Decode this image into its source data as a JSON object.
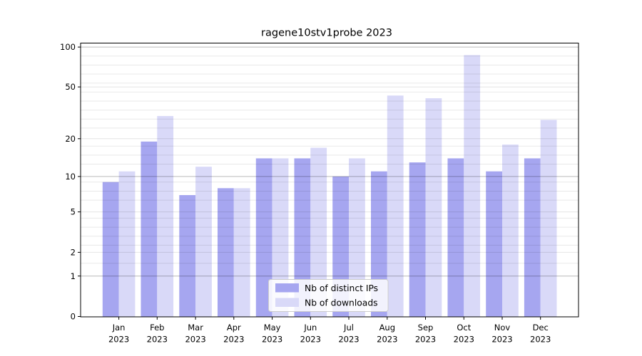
{
  "chart_data": {
    "type": "bar",
    "title": "ragene10stv1probe 2023",
    "categories": [
      "Jan 2023",
      "Feb 2023",
      "Mar 2023",
      "Apr 2023",
      "May 2023",
      "Jun 2023",
      "Jul 2023",
      "Aug 2023",
      "Sep 2023",
      "Oct 2023",
      "Nov 2023",
      "Dec 2023"
    ],
    "series": [
      {
        "name": "Nb of distinct IPs",
        "color": "#a6a6f0",
        "values": [
          9,
          19,
          7,
          8,
          14,
          14,
          10,
          11,
          13,
          14,
          11,
          14
        ]
      },
      {
        "name": "Nb of downloads",
        "color": "#d9d9f8",
        "values": [
          11,
          30,
          12,
          8,
          14,
          17,
          14,
          43,
          41,
          87,
          18,
          28
        ]
      }
    ],
    "xlabel": "",
    "ylabel": "",
    "yscale": "log1p",
    "y_tick_values": [
      100,
      50,
      20,
      10,
      5,
      2,
      1,
      0
    ],
    "ylim": [
      0,
      107
    ],
    "grid": true,
    "legend_position": "lower center"
  }
}
